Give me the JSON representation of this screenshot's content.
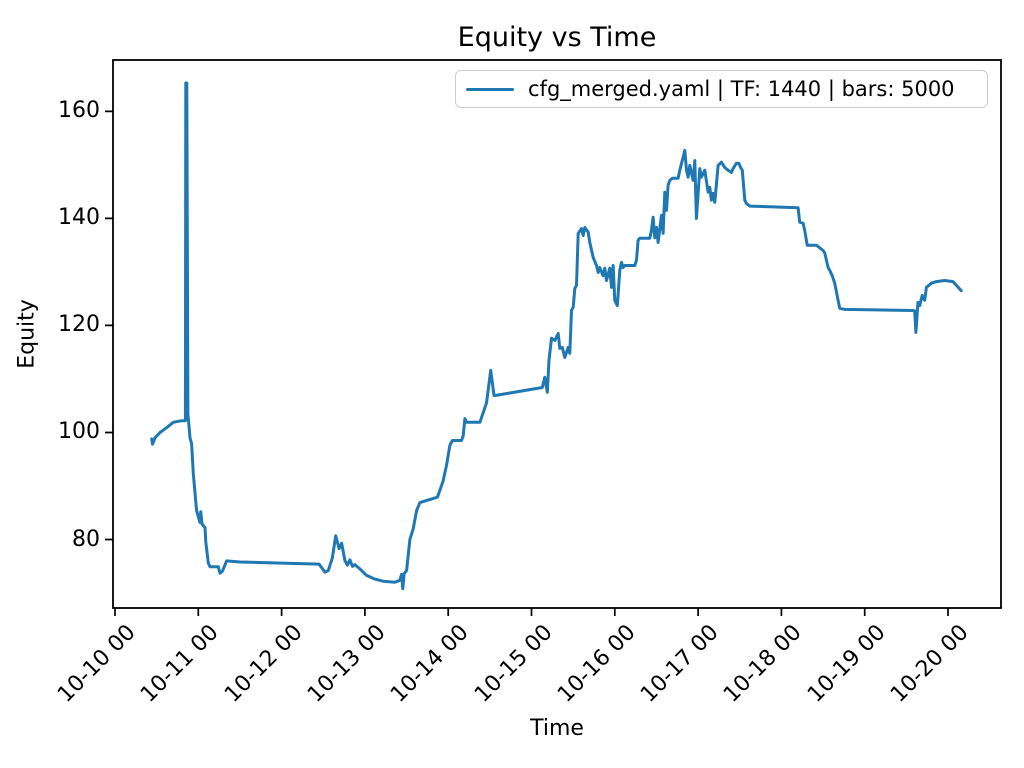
{
  "chart_data": {
    "type": "line",
    "title": "Equity vs Time",
    "xlabel": "Time",
    "ylabel": "Equity",
    "grid": false,
    "legend_position": "upper right",
    "xlim": [
      -0.024,
      10.636
    ],
    "ylim": [
      67.2,
      169.6
    ],
    "x_axis_note": "x values are days after the 10-10 00 tick",
    "x_ticks": [
      {
        "value": 0,
        "label": "10-10 00"
      },
      {
        "value": 1,
        "label": "10-11 00"
      },
      {
        "value": 2,
        "label": "10-12 00"
      },
      {
        "value": 3,
        "label": "10-13 00"
      },
      {
        "value": 4,
        "label": "10-14 00"
      },
      {
        "value": 5,
        "label": "10-15 00"
      },
      {
        "value": 6,
        "label": "10-16 00"
      },
      {
        "value": 7,
        "label": "10-17 00"
      },
      {
        "value": 8,
        "label": "10-18 00"
      },
      {
        "value": 9,
        "label": "10-19 00"
      },
      {
        "value": 10,
        "label": "10-20 00"
      }
    ],
    "y_ticks": [
      80,
      100,
      120,
      140,
      160
    ],
    "series": [
      {
        "name": "cfg_merged.yaml | TF: 1440 | bars: 5000",
        "color": "#1f77b4",
        "line_width": 3,
        "points": [
          [
            0.44,
            98.8
          ],
          [
            0.45,
            97.8
          ],
          [
            0.48,
            99.0
          ],
          [
            0.54,
            100.0
          ],
          [
            0.62,
            100.9
          ],
          [
            0.7,
            101.9
          ],
          [
            0.8,
            102.2
          ],
          [
            0.845,
            102.2
          ],
          [
            0.85,
            165.3
          ],
          [
            0.862,
            165.3
          ],
          [
            0.875,
            103.5
          ],
          [
            0.9,
            99.0
          ],
          [
            0.92,
            97.9
          ],
          [
            0.94,
            92.3
          ],
          [
            0.98,
            85.4
          ],
          [
            1.02,
            83.2
          ],
          [
            1.03,
            85.2
          ],
          [
            1.045,
            82.9
          ],
          [
            1.08,
            82.2
          ],
          [
            1.09,
            79.5
          ],
          [
            1.1,
            78.3
          ],
          [
            1.12,
            75.6
          ],
          [
            1.14,
            74.9
          ],
          [
            1.24,
            74.9
          ],
          [
            1.26,
            73.7
          ],
          [
            1.29,
            74.1
          ],
          [
            1.34,
            76.0
          ],
          [
            1.5,
            75.8
          ],
          [
            2.45,
            75.4
          ],
          [
            2.52,
            73.9
          ],
          [
            2.56,
            74.2
          ],
          [
            2.61,
            76.6
          ],
          [
            2.65,
            80.7
          ],
          [
            2.69,
            78.3
          ],
          [
            2.72,
            79.3
          ],
          [
            2.76,
            76.1
          ],
          [
            2.79,
            75.2
          ],
          [
            2.82,
            76.2
          ],
          [
            2.85,
            75.0
          ],
          [
            2.88,
            75.3
          ],
          [
            2.94,
            74.5
          ],
          [
            3.02,
            73.3
          ],
          [
            3.12,
            72.6
          ],
          [
            3.22,
            72.2
          ],
          [
            3.36,
            72.0
          ],
          [
            3.42,
            72.4
          ],
          [
            3.44,
            73.5
          ],
          [
            3.455,
            70.8
          ],
          [
            3.47,
            73.6
          ],
          [
            3.5,
            74.2
          ],
          [
            3.54,
            80.0
          ],
          [
            3.58,
            82.0
          ],
          [
            3.62,
            85.4
          ],
          [
            3.66,
            86.9
          ],
          [
            3.87,
            87.9
          ],
          [
            3.9,
            89.2
          ],
          [
            3.94,
            91.0
          ],
          [
            3.96,
            92.5
          ],
          [
            3.98,
            93.8
          ],
          [
            4.02,
            97.6
          ],
          [
            4.05,
            98.5
          ],
          [
            4.16,
            98.5
          ],
          [
            4.18,
            99.4
          ],
          [
            4.2,
            102.6
          ],
          [
            4.22,
            101.9
          ],
          [
            4.38,
            101.9
          ],
          [
            4.46,
            105.5
          ],
          [
            4.51,
            111.6
          ],
          [
            4.55,
            106.9
          ],
          [
            4.6,
            107.0
          ],
          [
            5.13,
            108.4
          ],
          [
            5.16,
            110.3
          ],
          [
            5.19,
            107.5
          ],
          [
            5.21,
            113.5
          ],
          [
            5.24,
            117.6
          ],
          [
            5.28,
            117.2
          ],
          [
            5.32,
            118.5
          ],
          [
            5.34,
            115.7
          ],
          [
            5.37,
            115.9
          ],
          [
            5.4,
            114.0
          ],
          [
            5.44,
            115.9
          ],
          [
            5.46,
            114.8
          ],
          [
            5.48,
            122.8
          ],
          [
            5.5,
            123.4
          ],
          [
            5.52,
            126.9
          ],
          [
            5.54,
            127.5
          ],
          [
            5.56,
            137.2
          ],
          [
            5.6,
            138.1
          ],
          [
            5.62,
            136.8
          ],
          [
            5.64,
            138.3
          ],
          [
            5.68,
            137.4
          ],
          [
            5.7,
            135.5
          ],
          [
            5.74,
            132.7
          ],
          [
            5.78,
            131.2
          ],
          [
            5.8,
            129.9
          ],
          [
            5.82,
            130.8
          ],
          [
            5.86,
            129.3
          ],
          [
            5.88,
            130.7
          ],
          [
            5.9,
            128.4
          ],
          [
            5.94,
            130.7
          ],
          [
            5.96,
            127.1
          ],
          [
            5.98,
            131.2
          ],
          [
            6.0,
            124.7
          ],
          [
            6.03,
            123.7
          ],
          [
            6.06,
            130.3
          ],
          [
            6.08,
            131.8
          ],
          [
            6.1,
            130.8
          ],
          [
            6.12,
            131.2
          ],
          [
            6.24,
            131.2
          ],
          [
            6.26,
            132.2
          ],
          [
            6.28,
            135.9
          ],
          [
            6.3,
            136.3
          ],
          [
            6.42,
            136.3
          ],
          [
            6.44,
            137.8
          ],
          [
            6.46,
            140.2
          ],
          [
            6.48,
            136.4
          ],
          [
            6.5,
            138.3
          ],
          [
            6.52,
            135.5
          ],
          [
            6.56,
            140.6
          ],
          [
            6.58,
            137.2
          ],
          [
            6.6,
            144.9
          ],
          [
            6.62,
            141.5
          ],
          [
            6.64,
            146.2
          ],
          [
            6.66,
            147.1
          ],
          [
            6.69,
            147.5
          ],
          [
            6.76,
            147.5
          ],
          [
            6.78,
            149.0
          ],
          [
            6.84,
            152.7
          ],
          [
            6.86,
            149.0
          ],
          [
            6.88,
            147.7
          ],
          [
            6.9,
            149.9
          ],
          [
            6.94,
            147.1
          ],
          [
            6.96,
            150.8
          ],
          [
            6.98,
            140.0
          ],
          [
            7.02,
            149.3
          ],
          [
            7.04,
            147.7
          ],
          [
            7.08,
            149.0
          ],
          [
            7.12,
            144.9
          ],
          [
            7.14,
            145.8
          ],
          [
            7.16,
            143.4
          ],
          [
            7.18,
            144.7
          ],
          [
            7.2,
            143.0
          ],
          [
            7.24,
            149.9
          ],
          [
            7.28,
            150.5
          ],
          [
            7.32,
            149.5
          ],
          [
            7.36,
            149.0
          ],
          [
            7.4,
            148.6
          ],
          [
            7.42,
            149.3
          ],
          [
            7.46,
            150.3
          ],
          [
            7.49,
            150.3
          ],
          [
            7.51,
            149.5
          ],
          [
            7.53,
            149.0
          ],
          [
            7.56,
            143.4
          ],
          [
            7.58,
            142.8
          ],
          [
            7.62,
            142.3
          ],
          [
            8.2,
            142.0
          ],
          [
            8.22,
            139.3
          ],
          [
            8.26,
            139.1
          ],
          [
            8.28,
            137.8
          ],
          [
            8.31,
            135.0
          ],
          [
            8.42,
            135.0
          ],
          [
            8.5,
            134.0
          ],
          [
            8.52,
            133.6
          ],
          [
            8.56,
            130.8
          ],
          [
            8.58,
            130.3
          ],
          [
            8.61,
            129.3
          ],
          [
            8.64,
            127.9
          ],
          [
            8.68,
            124.7
          ],
          [
            8.7,
            123.2
          ],
          [
            8.76,
            123.0
          ],
          [
            9.58,
            122.8
          ],
          [
            9.6,
            122.7
          ],
          [
            9.615,
            118.7
          ],
          [
            9.64,
            124.3
          ],
          [
            9.66,
            123.7
          ],
          [
            9.69,
            125.6
          ],
          [
            9.72,
            124.7
          ],
          [
            9.74,
            127.1
          ],
          [
            9.8,
            127.9
          ],
          [
            9.86,
            128.2
          ],
          [
            9.96,
            128.4
          ],
          [
            10.06,
            128.2
          ],
          [
            10.1,
            127.5
          ],
          [
            10.16,
            126.5
          ]
        ]
      }
    ]
  },
  "legend": {
    "label": "cfg_merged.yaml | TF: 1440 | bars: 5000"
  },
  "axes_style": {
    "spine_color": "#000000",
    "tick_color": "#000000",
    "background": "#ffffff"
  }
}
